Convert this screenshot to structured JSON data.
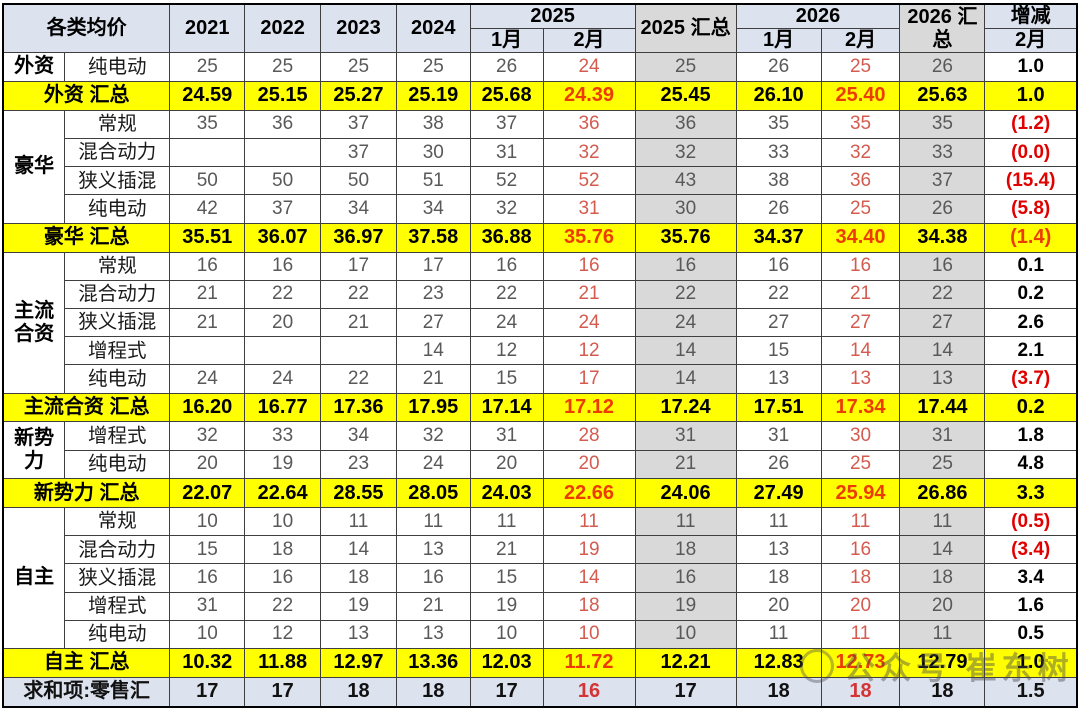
{
  "chart_data": {
    "type": "table",
    "title": "各类均价",
    "header": {
      "category": "各类均价",
      "years": [
        "2021",
        "2022",
        "2023",
        "2024"
      ],
      "y2025": "2025",
      "m1_2025": "1月",
      "m2_2025": "2月",
      "sum2025": "2025 汇总",
      "y2026": "2026",
      "m1_2026": "1月",
      "m2_2026": "2月",
      "sum2026": "2026 汇总",
      "change": "增减",
      "change_sub": "2月"
    },
    "columns": [
      "各类均价",
      "2021",
      "2022",
      "2023",
      "2024",
      "2025-1月",
      "2025-2月",
      "2025 汇总",
      "2026-1月",
      "2026-2月",
      "2026 汇总",
      "增减 2月"
    ],
    "rows": [
      {
        "type": "data",
        "group": "外资",
        "group_rows": 1,
        "label": "纯电动",
        "values": [
          "25",
          "25",
          "25",
          "25",
          "26",
          "24",
          "25",
          "26",
          "25",
          "26",
          "1.0"
        ]
      },
      {
        "type": "summary",
        "label": "外资 汇总",
        "values": [
          "24.59",
          "25.15",
          "25.27",
          "25.19",
          "25.68",
          "24.39",
          "25.45",
          "26.10",
          "25.40",
          "25.63",
          "1.0"
        ]
      },
      {
        "type": "data",
        "group": "豪华",
        "group_rows": 4,
        "label": "常规",
        "values": [
          "35",
          "36",
          "37",
          "38",
          "37",
          "36",
          "36",
          "35",
          "35",
          "35",
          "(1.2)"
        ]
      },
      {
        "type": "data",
        "label": "混合动力",
        "values": [
          "",
          "",
          "37",
          "30",
          "31",
          "32",
          "32",
          "33",
          "32",
          "33",
          "(0.0)"
        ]
      },
      {
        "type": "data",
        "label": "狭义插混",
        "values": [
          "50",
          "50",
          "50",
          "51",
          "52",
          "52",
          "43",
          "38",
          "36",
          "37",
          "(15.4)"
        ]
      },
      {
        "type": "data",
        "label": "纯电动",
        "values": [
          "42",
          "37",
          "34",
          "34",
          "32",
          "31",
          "30",
          "26",
          "25",
          "26",
          "(5.8)"
        ]
      },
      {
        "type": "summary",
        "label": "豪华 汇总",
        "values": [
          "35.51",
          "36.07",
          "36.97",
          "37.58",
          "36.88",
          "35.76",
          "35.76",
          "34.37",
          "34.40",
          "34.38",
          "(1.4)"
        ]
      },
      {
        "type": "data",
        "group": "主流合资",
        "group_rows": 5,
        "label": "常规",
        "values": [
          "16",
          "16",
          "17",
          "17",
          "16",
          "16",
          "16",
          "16",
          "16",
          "16",
          "0.1"
        ]
      },
      {
        "type": "data",
        "label": "混合动力",
        "values": [
          "21",
          "22",
          "22",
          "23",
          "22",
          "21",
          "22",
          "22",
          "21",
          "22",
          "0.2"
        ]
      },
      {
        "type": "data",
        "label": "狭义插混",
        "values": [
          "21",
          "20",
          "21",
          "27",
          "24",
          "24",
          "24",
          "27",
          "27",
          "27",
          "2.6"
        ]
      },
      {
        "type": "data",
        "label": "增程式",
        "values": [
          "",
          "",
          "",
          "14",
          "12",
          "12",
          "14",
          "15",
          "14",
          "14",
          "2.1"
        ]
      },
      {
        "type": "data",
        "label": "纯电动",
        "values": [
          "24",
          "24",
          "22",
          "21",
          "15",
          "17",
          "14",
          "13",
          "13",
          "13",
          "(3.7)"
        ]
      },
      {
        "type": "summary",
        "label": "主流合资 汇总",
        "values": [
          "16.20",
          "16.77",
          "17.36",
          "17.95",
          "17.14",
          "17.12",
          "17.24",
          "17.51",
          "17.34",
          "17.44",
          "0.2"
        ]
      },
      {
        "type": "data",
        "group": "新势力",
        "group_rows": 2,
        "label": "增程式",
        "values": [
          "32",
          "33",
          "34",
          "32",
          "31",
          "28",
          "31",
          "31",
          "30",
          "31",
          "1.8"
        ]
      },
      {
        "type": "data",
        "label": "纯电动",
        "values": [
          "20",
          "19",
          "23",
          "24",
          "20",
          "20",
          "21",
          "26",
          "25",
          "25",
          "4.8"
        ]
      },
      {
        "type": "summary",
        "label": "新势力 汇总",
        "values": [
          "22.07",
          "22.64",
          "28.55",
          "28.05",
          "24.03",
          "22.66",
          "24.06",
          "27.49",
          "25.94",
          "26.86",
          "3.3"
        ]
      },
      {
        "type": "data",
        "group": "自主",
        "group_rows": 5,
        "label": "常规",
        "values": [
          "10",
          "10",
          "11",
          "11",
          "11",
          "11",
          "11",
          "11",
          "11",
          "11",
          "(0.5)"
        ]
      },
      {
        "type": "data",
        "label": "混合动力",
        "values": [
          "15",
          "18",
          "14",
          "13",
          "21",
          "19",
          "18",
          "13",
          "16",
          "14",
          "(3.4)"
        ]
      },
      {
        "type": "data",
        "label": "狭义插混",
        "values": [
          "16",
          "16",
          "18",
          "16",
          "15",
          "14",
          "16",
          "18",
          "18",
          "18",
          "3.4"
        ]
      },
      {
        "type": "data",
        "label": "增程式",
        "values": [
          "31",
          "22",
          "19",
          "21",
          "19",
          "18",
          "19",
          "20",
          "20",
          "20",
          "1.6"
        ]
      },
      {
        "type": "data",
        "label": "纯电动",
        "values": [
          "10",
          "12",
          "13",
          "13",
          "10",
          "10",
          "10",
          "11",
          "11",
          "11",
          "0.5"
        ]
      },
      {
        "type": "summary",
        "label": "自主 汇总",
        "values": [
          "10.32",
          "11.88",
          "12.97",
          "13.36",
          "12.03",
          "11.72",
          "12.21",
          "12.83",
          "12.73",
          "12.79",
          "1.0"
        ]
      },
      {
        "type": "total",
        "label": "求和项:零售汇",
        "values": [
          "17",
          "17",
          "18",
          "18",
          "17",
          "16",
          "17",
          "18",
          "18",
          "18",
          "1.5"
        ]
      }
    ]
  },
  "watermark": "公众号 崔东树",
  "colors": {
    "summary_row_bg": "#ffff00",
    "header_bg": "#dce2ee",
    "summary_col_bg": "#d9d9d9",
    "total_row_bg": "#dce2ee",
    "negative_red": "#e00000",
    "month_value_red": "#d45b4f",
    "summary_month_red": "#ec3c00",
    "value_gray": "#595959"
  }
}
